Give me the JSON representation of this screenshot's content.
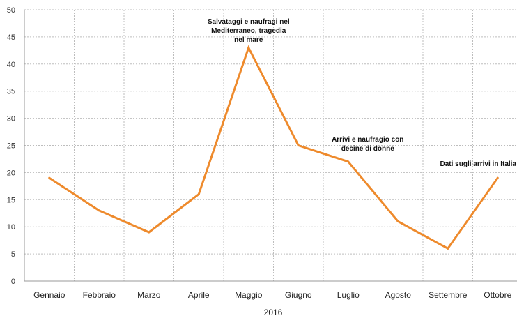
{
  "chart_data": {
    "type": "line",
    "categories": [
      "Gennaio",
      "Febbraio",
      "Marzo",
      "Aprile",
      "Maggio",
      "Giugno",
      "Luglio",
      "Agosto",
      "Settembre",
      "Ottobre"
    ],
    "series": [
      {
        "name": "",
        "values": [
          19,
          13,
          9,
          16,
          43,
          25,
          22,
          11,
          6,
          19
        ]
      }
    ],
    "title": "",
    "xlabel": "2016",
    "ylabel": "",
    "ylim": [
      0,
      50
    ],
    "yticks": [
      0,
      5,
      10,
      15,
      20,
      25,
      30,
      35,
      40,
      45,
      50
    ],
    "grid": true,
    "line_color": "#ee8a2c",
    "annotations": [
      {
        "category": "Maggio",
        "lines": [
          "Salvataggi e naufragi nel",
          "Mediterraneo, tragedia",
          "nel mare"
        ]
      },
      {
        "category": "Luglio",
        "lines": [
          "Arrivi e naufragio con",
          "decine di donne"
        ]
      },
      {
        "category": "Ottobre",
        "lines": [
          "Dati sugli arrivi in Italia"
        ]
      }
    ]
  }
}
